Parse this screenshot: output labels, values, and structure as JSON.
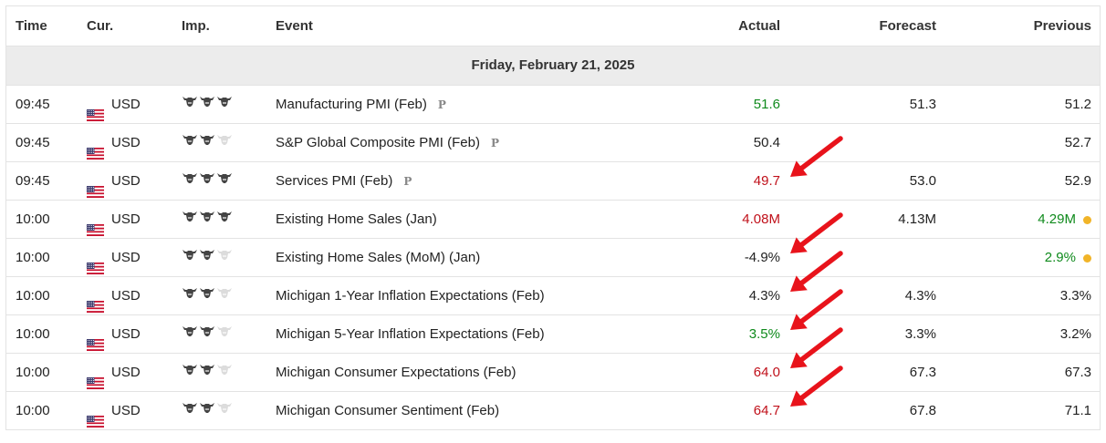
{
  "header": {
    "time": "Time",
    "currency": "Cur.",
    "importance": "Imp.",
    "event": "Event",
    "actual": "Actual",
    "forecast": "Forecast",
    "previous": "Previous"
  },
  "date_label": "Friday, February 21, 2025",
  "colors": {
    "positive": "#0f8a1c",
    "negative": "#c0101a",
    "revised_dot": "#f1b428",
    "annotation_arrow": "#e8131b"
  },
  "rows": [
    {
      "time": "09:45",
      "currency": "USD",
      "importance": 3,
      "event": "Manufacturing PMI (Feb)",
      "preliminary": true,
      "preliminary_mark": "P",
      "actual": "51.6",
      "actual_color": "green",
      "forecast": "51.3",
      "previous": "51.2",
      "previous_color": "",
      "revised": false
    },
    {
      "time": "09:45",
      "currency": "USD",
      "importance": 2,
      "event": "S&P Global Composite PMI (Feb)",
      "preliminary": true,
      "preliminary_mark": "P",
      "actual": "50.4",
      "actual_color": "",
      "forecast": "",
      "previous": "52.7",
      "previous_color": "",
      "revised": false
    },
    {
      "time": "09:45",
      "currency": "USD",
      "importance": 3,
      "event": "Services PMI (Feb)",
      "preliminary": true,
      "preliminary_mark": "P",
      "actual": "49.7",
      "actual_color": "red",
      "forecast": "53.0",
      "previous": "52.9",
      "previous_color": "",
      "revised": false
    },
    {
      "time": "10:00",
      "currency": "USD",
      "importance": 3,
      "event": "Existing Home Sales (Jan)",
      "preliminary": false,
      "actual": "4.08M",
      "actual_color": "red",
      "forecast": "4.13M",
      "previous": "4.29M",
      "previous_color": "green",
      "revised": true
    },
    {
      "time": "10:00",
      "currency": "USD",
      "importance": 2,
      "event": "Existing Home Sales (MoM) (Jan)",
      "preliminary": false,
      "actual": "-4.9%",
      "actual_color": "",
      "forecast": "",
      "previous": "2.9%",
      "previous_color": "green",
      "revised": true
    },
    {
      "time": "10:00",
      "currency": "USD",
      "importance": 2,
      "event": "Michigan 1-Year Inflation Expectations (Feb)",
      "preliminary": false,
      "actual": "4.3%",
      "actual_color": "",
      "forecast": "4.3%",
      "previous": "3.3%",
      "previous_color": "",
      "revised": false
    },
    {
      "time": "10:00",
      "currency": "USD",
      "importance": 2,
      "event": "Michigan 5-Year Inflation Expectations (Feb)",
      "preliminary": false,
      "actual": "3.5%",
      "actual_color": "green",
      "forecast": "3.3%",
      "previous": "3.2%",
      "previous_color": "",
      "revised": false
    },
    {
      "time": "10:00",
      "currency": "USD",
      "importance": 2,
      "event": "Michigan Consumer Expectations (Feb)",
      "preliminary": false,
      "actual": "64.0",
      "actual_color": "red",
      "forecast": "67.3",
      "previous": "67.3",
      "previous_color": "",
      "revised": false
    },
    {
      "time": "10:00",
      "currency": "USD",
      "importance": 2,
      "event": "Michigan Consumer Sentiment (Feb)",
      "preliminary": false,
      "actual": "64.7",
      "actual_color": "red",
      "forecast": "67.8",
      "previous": "71.1",
      "previous_color": "",
      "revised": false
    }
  ],
  "annotation_arrow_rows": [
    2,
    4,
    5,
    6,
    7,
    8
  ]
}
